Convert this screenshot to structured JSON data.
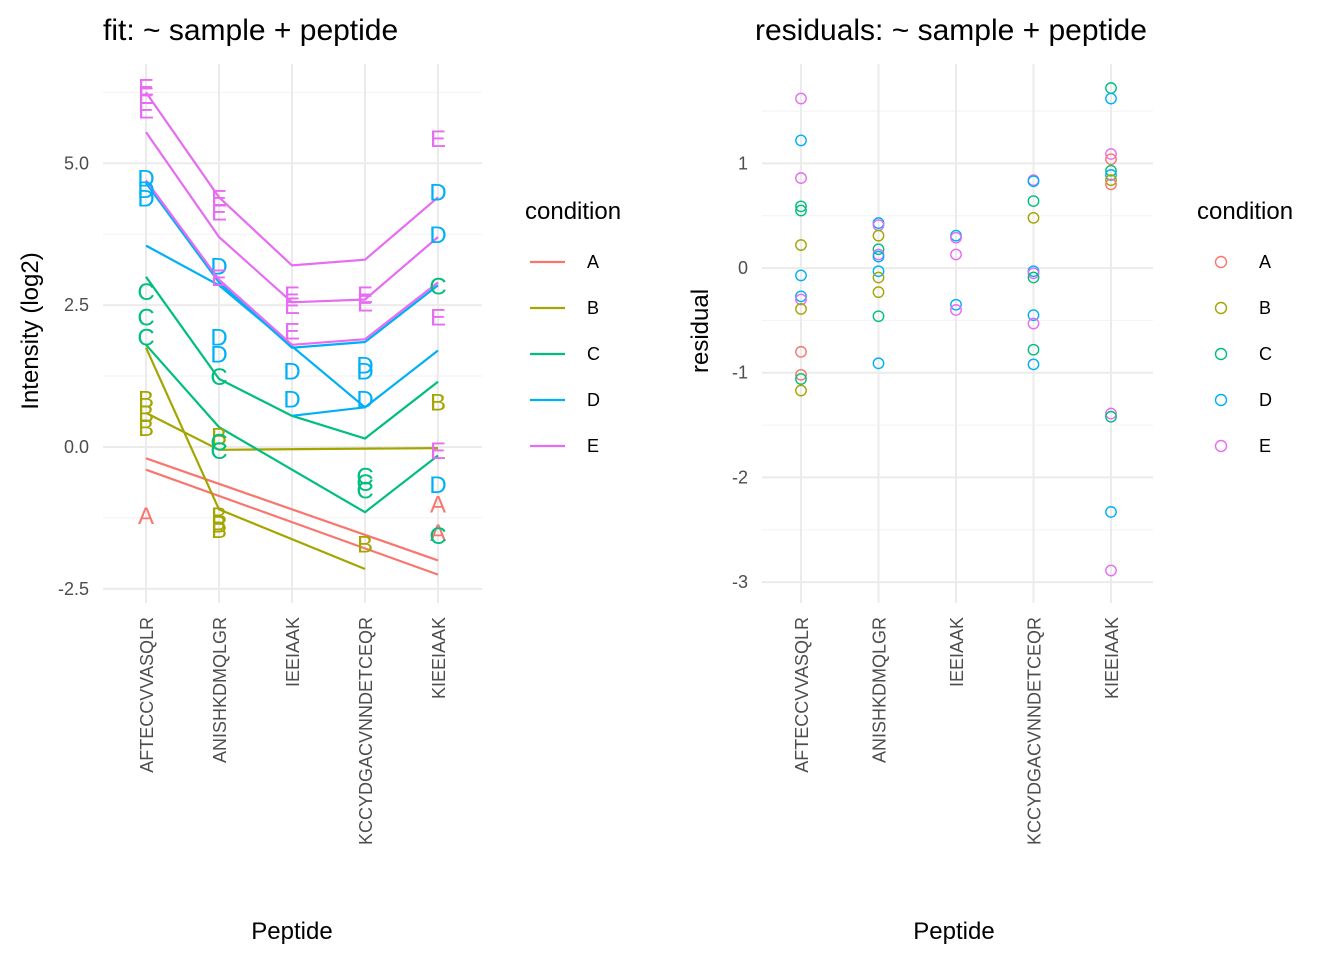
{
  "colors": {
    "A": "#F8766D",
    "B": "#A3A500",
    "C": "#00BF7D",
    "D": "#00B0F6",
    "E": "#E76BF3"
  },
  "chart_data": [
    {
      "type": "line",
      "title": "fit: ~ sample + peptide",
      "xlabel": "Peptide",
      "ylabel": "Intensity (log2)",
      "categories": [
        "AFTECCVVASQLR",
        "ANISHKDMQLGR",
        "IEEIAAK",
        "KCCYDGACVNNDETCEQR",
        "KIEEIAAK"
      ],
      "yticks": [
        -2.5,
        0.0,
        2.5,
        5.0
      ],
      "ytick_labels": [
        "-2.5",
        "0.0",
        "2.5",
        "5.0"
      ],
      "ylim": [
        -2.75,
        6.75
      ],
      "legend": {
        "title": "condition",
        "position": "right",
        "entries": [
          "A",
          "B",
          "C",
          "D",
          "E"
        ]
      },
      "lines": [
        {
          "group": "A",
          "values": [
            -0.2,
            null,
            null,
            null,
            -2.0
          ]
        },
        {
          "group": "A",
          "values": [
            -0.4,
            null,
            null,
            null,
            -2.25
          ]
        },
        {
          "group": "B",
          "values": [
            1.75,
            -1.1,
            null,
            -2.15,
            null
          ]
        },
        {
          "group": "B",
          "values": [
            0.6,
            -0.05,
            null,
            null,
            -0.02
          ]
        },
        {
          "group": "C",
          "values": [
            3.0,
            1.2,
            0.55,
            0.15,
            1.15
          ]
        },
        {
          "group": "C",
          "values": [
            1.8,
            0.35,
            null,
            -1.15,
            -0.15
          ]
        },
        {
          "group": "D",
          "values": [
            4.65,
            2.9,
            1.75,
            1.85,
            2.85
          ]
        },
        {
          "group": "D",
          "values": [
            3.55,
            2.85,
            null,
            0.7,
            1.7
          ]
        },
        {
          "group": "D",
          "values": [
            null,
            null,
            0.55,
            0.7,
            null
          ]
        },
        {
          "group": "E",
          "values": [
            6.25,
            4.4,
            3.2,
            3.3,
            4.4
          ]
        },
        {
          "group": "E",
          "values": [
            5.55,
            3.7,
            2.55,
            2.6,
            3.7
          ]
        },
        {
          "group": "E",
          "values": [
            4.7,
            2.95,
            1.8,
            1.9,
            2.9
          ]
        }
      ],
      "points": [
        {
          "group": "A",
          "x": "AFTECCVVASQLR",
          "y": -1.2
        },
        {
          "group": "A",
          "x": "KIEEIAAK",
          "y": -1.0
        },
        {
          "group": "A",
          "x": "KIEEIAAK",
          "y": -1.5
        },
        {
          "group": "B",
          "x": "AFTECCVVASQLR",
          "y": 0.85
        },
        {
          "group": "B",
          "x": "AFTECCVVASQLR",
          "y": 0.6
        },
        {
          "group": "B",
          "x": "AFTECCVVASQLR",
          "y": 0.35
        },
        {
          "group": "B",
          "x": "ANISHKDMQLGR",
          "y": 0.2
        },
        {
          "group": "B",
          "x": "ANISHKDMQLGR",
          "y": -1.2
        },
        {
          "group": "B",
          "x": "ANISHKDMQLGR",
          "y": -1.35
        },
        {
          "group": "B",
          "x": "ANISHKDMQLGR",
          "y": -1.45
        },
        {
          "group": "B",
          "x": "KCCYDGACVNNDETCEQR",
          "y": -1.7
        },
        {
          "group": "B",
          "x": "KIEEIAAK",
          "y": 0.8
        },
        {
          "group": "C",
          "x": "AFTECCVVASQLR",
          "y": 2.75
        },
        {
          "group": "C",
          "x": "AFTECCVVASQLR",
          "y": 2.3
        },
        {
          "group": "C",
          "x": "AFTECCVVASQLR",
          "y": 1.95
        },
        {
          "group": "C",
          "x": "ANISHKDMQLGR",
          "y": 1.25
        },
        {
          "group": "C",
          "x": "ANISHKDMQLGR",
          "y": 0.1
        },
        {
          "group": "C",
          "x": "ANISHKDMQLGR",
          "y": -0.05
        },
        {
          "group": "C",
          "x": "KCCYDGACVNNDETCEQR",
          "y": -0.5
        },
        {
          "group": "C",
          "x": "KCCYDGACVNNDETCEQR",
          "y": -0.62
        },
        {
          "group": "C",
          "x": "KCCYDGACVNNDETCEQR",
          "y": -0.75
        },
        {
          "group": "C",
          "x": "KIEEIAAK",
          "y": 2.85
        },
        {
          "group": "C",
          "x": "KIEEIAAK",
          "y": -1.55
        },
        {
          "group": "D",
          "x": "AFTECCVVASQLR",
          "y": 4.75
        },
        {
          "group": "D",
          "x": "AFTECCVVASQLR",
          "y": 4.55
        },
        {
          "group": "D",
          "x": "AFTECCVVASQLR",
          "y": 4.4
        },
        {
          "group": "D",
          "x": "ANISHKDMQLGR",
          "y": 3.2
        },
        {
          "group": "D",
          "x": "ANISHKDMQLGR",
          "y": 1.95
        },
        {
          "group": "D",
          "x": "ANISHKDMQLGR",
          "y": 1.65
        },
        {
          "group": "D",
          "x": "IEEIAAK",
          "y": 1.35
        },
        {
          "group": "D",
          "x": "IEEIAAK",
          "y": 0.85
        },
        {
          "group": "D",
          "x": "KCCYDGACVNNDETCEQR",
          "y": 1.45
        },
        {
          "group": "D",
          "x": "KCCYDGACVNNDETCEQR",
          "y": 1.35
        },
        {
          "group": "D",
          "x": "KCCYDGACVNNDETCEQR",
          "y": 0.85
        },
        {
          "group": "D",
          "x": "KIEEIAAK",
          "y": 4.5
        },
        {
          "group": "D",
          "x": "KIEEIAAK",
          "y": 3.75
        },
        {
          "group": "D",
          "x": "KIEEIAAK",
          "y": -0.65
        },
        {
          "group": "E",
          "x": "AFTECCVVASQLR",
          "y": 6.35
        },
        {
          "group": "E",
          "x": "AFTECCVVASQLR",
          "y": 6.2
        },
        {
          "group": "E",
          "x": "AFTECCVVASQLR",
          "y": 5.95
        },
        {
          "group": "E",
          "x": "ANISHKDMQLGR",
          "y": 4.4
        },
        {
          "group": "E",
          "x": "ANISHKDMQLGR",
          "y": 4.15
        },
        {
          "group": "E",
          "x": "ANISHKDMQLGR",
          "y": 3.0
        },
        {
          "group": "E",
          "x": "IEEIAAK",
          "y": 2.7
        },
        {
          "group": "E",
          "x": "IEEIAAK",
          "y": 2.5
        },
        {
          "group": "E",
          "x": "IEEIAAK",
          "y": 2.05
        },
        {
          "group": "E",
          "x": "KCCYDGACVNNDETCEQR",
          "y": 2.7
        },
        {
          "group": "E",
          "x": "KCCYDGACVNNDETCEQR",
          "y": 2.55
        },
        {
          "group": "E",
          "x": "KIEEIAAK",
          "y": 5.45
        },
        {
          "group": "E",
          "x": "KIEEIAAK",
          "y": 2.3
        },
        {
          "group": "E",
          "x": "KIEEIAAK",
          "y": -0.05
        }
      ]
    },
    {
      "type": "scatter",
      "title": "residuals: ~ sample + peptide",
      "xlabel": "Peptide",
      "ylabel": "residual",
      "categories": [
        "AFTECCVVASQLR",
        "ANISHKDMQLGR",
        "IEEIAAK",
        "KCCYDGACVNNDETCEQR",
        "KIEEIAAK"
      ],
      "yticks": [
        -3,
        -2,
        -1,
        0,
        1
      ],
      "ytick_labels": [
        "-3",
        "-2",
        "-1",
        "0",
        "1"
      ],
      "ylim": [
        -3.2,
        1.95
      ],
      "legend": {
        "title": "condition",
        "position": "right",
        "entries": [
          "A",
          "B",
          "C",
          "D",
          "E"
        ]
      },
      "points": [
        {
          "group": "E",
          "x": "AFTECCVVASQLR",
          "y": 1.62
        },
        {
          "group": "D",
          "x": "AFTECCVVASQLR",
          "y": 1.22
        },
        {
          "group": "E",
          "x": "AFTECCVVASQLR",
          "y": 0.86
        },
        {
          "group": "C",
          "x": "AFTECCVVASQLR",
          "y": 0.59
        },
        {
          "group": "C",
          "x": "AFTECCVVASQLR",
          "y": 0.55
        },
        {
          "group": "B",
          "x": "AFTECCVVASQLR",
          "y": 0.22
        },
        {
          "group": "D",
          "x": "AFTECCVVASQLR",
          "y": -0.07
        },
        {
          "group": "D",
          "x": "AFTECCVVASQLR",
          "y": -0.27
        },
        {
          "group": "E",
          "x": "AFTECCVVASQLR",
          "y": -0.3
        },
        {
          "group": "B",
          "x": "AFTECCVVASQLR",
          "y": -0.39
        },
        {
          "group": "A",
          "x": "AFTECCVVASQLR",
          "y": -0.8
        },
        {
          "group": "A",
          "x": "AFTECCVVASQLR",
          "y": -1.02
        },
        {
          "group": "C",
          "x": "AFTECCVVASQLR",
          "y": -1.06
        },
        {
          "group": "B",
          "x": "AFTECCVVASQLR",
          "y": -1.17
        },
        {
          "group": "D",
          "x": "ANISHKDMQLGR",
          "y": 0.43
        },
        {
          "group": "E",
          "x": "ANISHKDMQLGR",
          "y": 0.41
        },
        {
          "group": "B",
          "x": "ANISHKDMQLGR",
          "y": 0.31
        },
        {
          "group": "C",
          "x": "ANISHKDMQLGR",
          "y": 0.18
        },
        {
          "group": "E",
          "x": "ANISHKDMQLGR",
          "y": 0.13
        },
        {
          "group": "D",
          "x": "ANISHKDMQLGR",
          "y": 0.11
        },
        {
          "group": "D",
          "x": "ANISHKDMQLGR",
          "y": -0.03
        },
        {
          "group": "B",
          "x": "ANISHKDMQLGR",
          "y": -0.09
        },
        {
          "group": "B",
          "x": "ANISHKDMQLGR",
          "y": -0.23
        },
        {
          "group": "C",
          "x": "ANISHKDMQLGR",
          "y": -0.46
        },
        {
          "group": "D",
          "x": "ANISHKDMQLGR",
          "y": -0.91
        },
        {
          "group": "D",
          "x": "IEEIAAK",
          "y": 0.31
        },
        {
          "group": "E",
          "x": "IEEIAAK",
          "y": 0.29
        },
        {
          "group": "E",
          "x": "IEEIAAK",
          "y": 0.13
        },
        {
          "group": "D",
          "x": "IEEIAAK",
          "y": -0.35
        },
        {
          "group": "E",
          "x": "IEEIAAK",
          "y": -0.4
        },
        {
          "group": "E",
          "x": "KCCYDGACVNNDETCEQR",
          "y": 0.84
        },
        {
          "group": "D",
          "x": "KCCYDGACVNNDETCEQR",
          "y": 0.83
        },
        {
          "group": "C",
          "x": "KCCYDGACVNNDETCEQR",
          "y": 0.64
        },
        {
          "group": "B",
          "x": "KCCYDGACVNNDETCEQR",
          "y": 0.48
        },
        {
          "group": "D",
          "x": "KCCYDGACVNNDETCEQR",
          "y": -0.03
        },
        {
          "group": "E",
          "x": "KCCYDGACVNNDETCEQR",
          "y": -0.05
        },
        {
          "group": "C",
          "x": "KCCYDGACVNNDETCEQR",
          "y": -0.09
        },
        {
          "group": "D",
          "x": "KCCYDGACVNNDETCEQR",
          "y": -0.45
        },
        {
          "group": "E",
          "x": "KCCYDGACVNNDETCEQR",
          "y": -0.53
        },
        {
          "group": "C",
          "x": "KCCYDGACVNNDETCEQR",
          "y": -0.78
        },
        {
          "group": "D",
          "x": "KCCYDGACVNNDETCEQR",
          "y": -0.92
        },
        {
          "group": "C",
          "x": "KIEEIAAK",
          "y": 1.72
        },
        {
          "group": "D",
          "x": "KIEEIAAK",
          "y": 1.62
        },
        {
          "group": "E",
          "x": "KIEEIAAK",
          "y": 1.09
        },
        {
          "group": "A",
          "x": "KIEEIAAK",
          "y": 1.04
        },
        {
          "group": "C",
          "x": "KIEEIAAK",
          "y": 0.93
        },
        {
          "group": "D",
          "x": "KIEEIAAK",
          "y": 0.89
        },
        {
          "group": "B",
          "x": "KIEEIAAK",
          "y": 0.84
        },
        {
          "group": "A",
          "x": "KIEEIAAK",
          "y": 0.8
        },
        {
          "group": "E",
          "x": "KIEEIAAK",
          "y": -1.39
        },
        {
          "group": "C",
          "x": "KIEEIAAK",
          "y": -1.42
        },
        {
          "group": "D",
          "x": "KIEEIAAK",
          "y": -2.33
        },
        {
          "group": "E",
          "x": "KIEEIAAK",
          "y": -2.89
        }
      ]
    }
  ]
}
